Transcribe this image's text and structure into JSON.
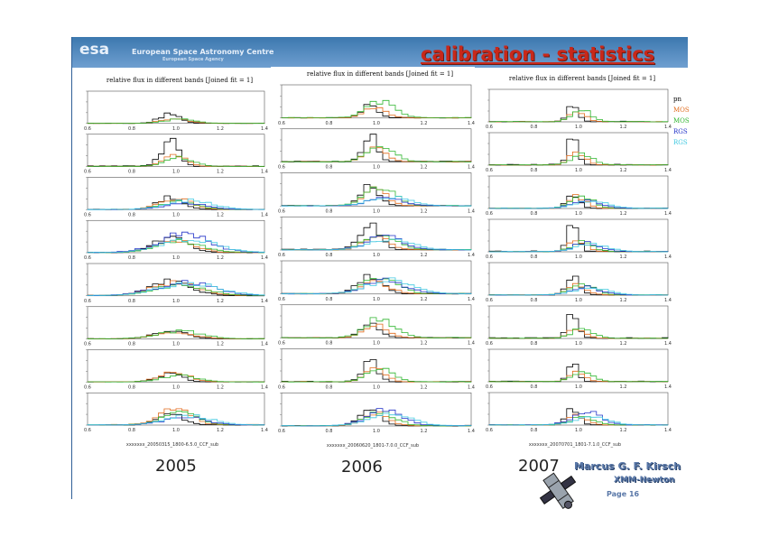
{
  "header": {
    "logo_text": "esa",
    "org_name": "European Space Astronomy Centre",
    "org_subtitle": "European Space Agency",
    "title": "calibration  - statistics"
  },
  "colors": {
    "header": "#4f86bf",
    "title": "#c8281a",
    "pn": "#000000",
    "mos1": "#e06b1c",
    "mos2": "#2fb52f",
    "rgs1": "#2030c8",
    "rgs2": "#3fc8e0"
  },
  "legend": [
    {
      "label": "pn",
      "color": "#000000"
    },
    {
      "label": "MOS",
      "color": "#e06b1c"
    },
    {
      "label": "MOS",
      "color": "#2fb52f"
    },
    {
      "label": "RGS",
      "color": "#2030c8"
    },
    {
      "label": "RGS",
      "color": "#3fc8e0"
    }
  ],
  "panels": [
    {
      "year": "2005",
      "title": "relative flux in different bands [Joined fit =   1]",
      "filename": "xxxxxxx_20050315_1800-6.5.0_CCF_sub",
      "x_ticks": [
        "0.6",
        "0.8",
        "1.0",
        "1.2",
        "1.4"
      ],
      "peaks": [
        [
          0.35,
          0.2,
          0.15,
          0.0,
          0.0
        ],
        [
          1.0,
          0.45,
          0.35,
          0.0,
          0.0
        ],
        [
          0.45,
          0.45,
          0.3,
          0.25,
          0.35
        ],
        [
          0.6,
          0.45,
          0.45,
          0.7,
          0.5
        ],
        [
          0.55,
          0.5,
          0.4,
          0.5,
          0.45
        ],
        [
          0.3,
          0.25,
          0.3,
          0.0,
          0.0
        ],
        [
          0.3,
          0.35,
          0.25,
          0.0,
          0.0
        ],
        [
          0.45,
          0.7,
          0.45,
          0.3,
          0.35
        ]
      ],
      "spreads": [
        2.5,
        2.0,
        3.0,
        4.0,
        5.0,
        4.0,
        3.0,
        3.0
      ]
    },
    {
      "year": "2006",
      "title": "relative flux in different bands [Joined fit = 1]",
      "filename": "xxxxxxx_20060620_1801-7.0.0_CCF_sub",
      "x_ticks": [
        "0.6",
        "0.8",
        "1.0",
        "1.2",
        "1.4"
      ],
      "peaks": [
        [
          0.5,
          0.4,
          0.6,
          0.0,
          0.0
        ],
        [
          1.0,
          0.55,
          0.65,
          0.0,
          0.0
        ],
        [
          0.8,
          0.6,
          0.7,
          0.3,
          0.35
        ],
        [
          1.0,
          0.5,
          0.6,
          0.5,
          0.4
        ],
        [
          0.7,
          0.45,
          0.6,
          0.5,
          0.5
        ],
        [
          0.6,
          0.5,
          0.7,
          0.0,
          0.0
        ],
        [
          0.8,
          0.5,
          0.5,
          0.0,
          0.0
        ],
        [
          0.7,
          0.5,
          0.5,
          0.6,
          0.45
        ]
      ],
      "spreads": [
        1.8,
        1.6,
        2.0,
        2.2,
        2.6,
        2.0,
        1.6,
        2.2
      ]
    },
    {
      "year": "2007",
      "title": "relative flux in different bands [Joined fit =   1]",
      "filename": "xxxxxxx_20070701_1801-7.1.0_CCF_sub",
      "x_ticks": [
        "0.6",
        "0.8",
        "1.0",
        "1.2",
        "1.4"
      ],
      "peaks": [
        [
          0.7,
          0.45,
          0.4,
          0.0,
          0.0
        ],
        [
          1.0,
          0.5,
          0.45,
          0.0,
          0.0
        ],
        [
          0.55,
          0.45,
          0.45,
          0.3,
          0.3
        ],
        [
          1.0,
          0.45,
          0.4,
          0.35,
          0.3
        ],
        [
          0.65,
          0.4,
          0.4,
          0.3,
          0.3
        ],
        [
          0.9,
          0.4,
          0.35,
          0.0,
          0.0
        ],
        [
          0.7,
          0.4,
          0.35,
          0.0,
          0.0
        ],
        [
          0.6,
          0.35,
          0.3,
          0.5,
          0.3
        ]
      ],
      "spreads": [
        1.2,
        1.2,
        1.5,
        1.3,
        1.6,
        1.3,
        1.2,
        1.6
      ]
    }
  ],
  "footer": {
    "author": "Marcus G. F. Kirsch",
    "mission": "XMM-Newton",
    "page_label": "Page 16"
  }
}
